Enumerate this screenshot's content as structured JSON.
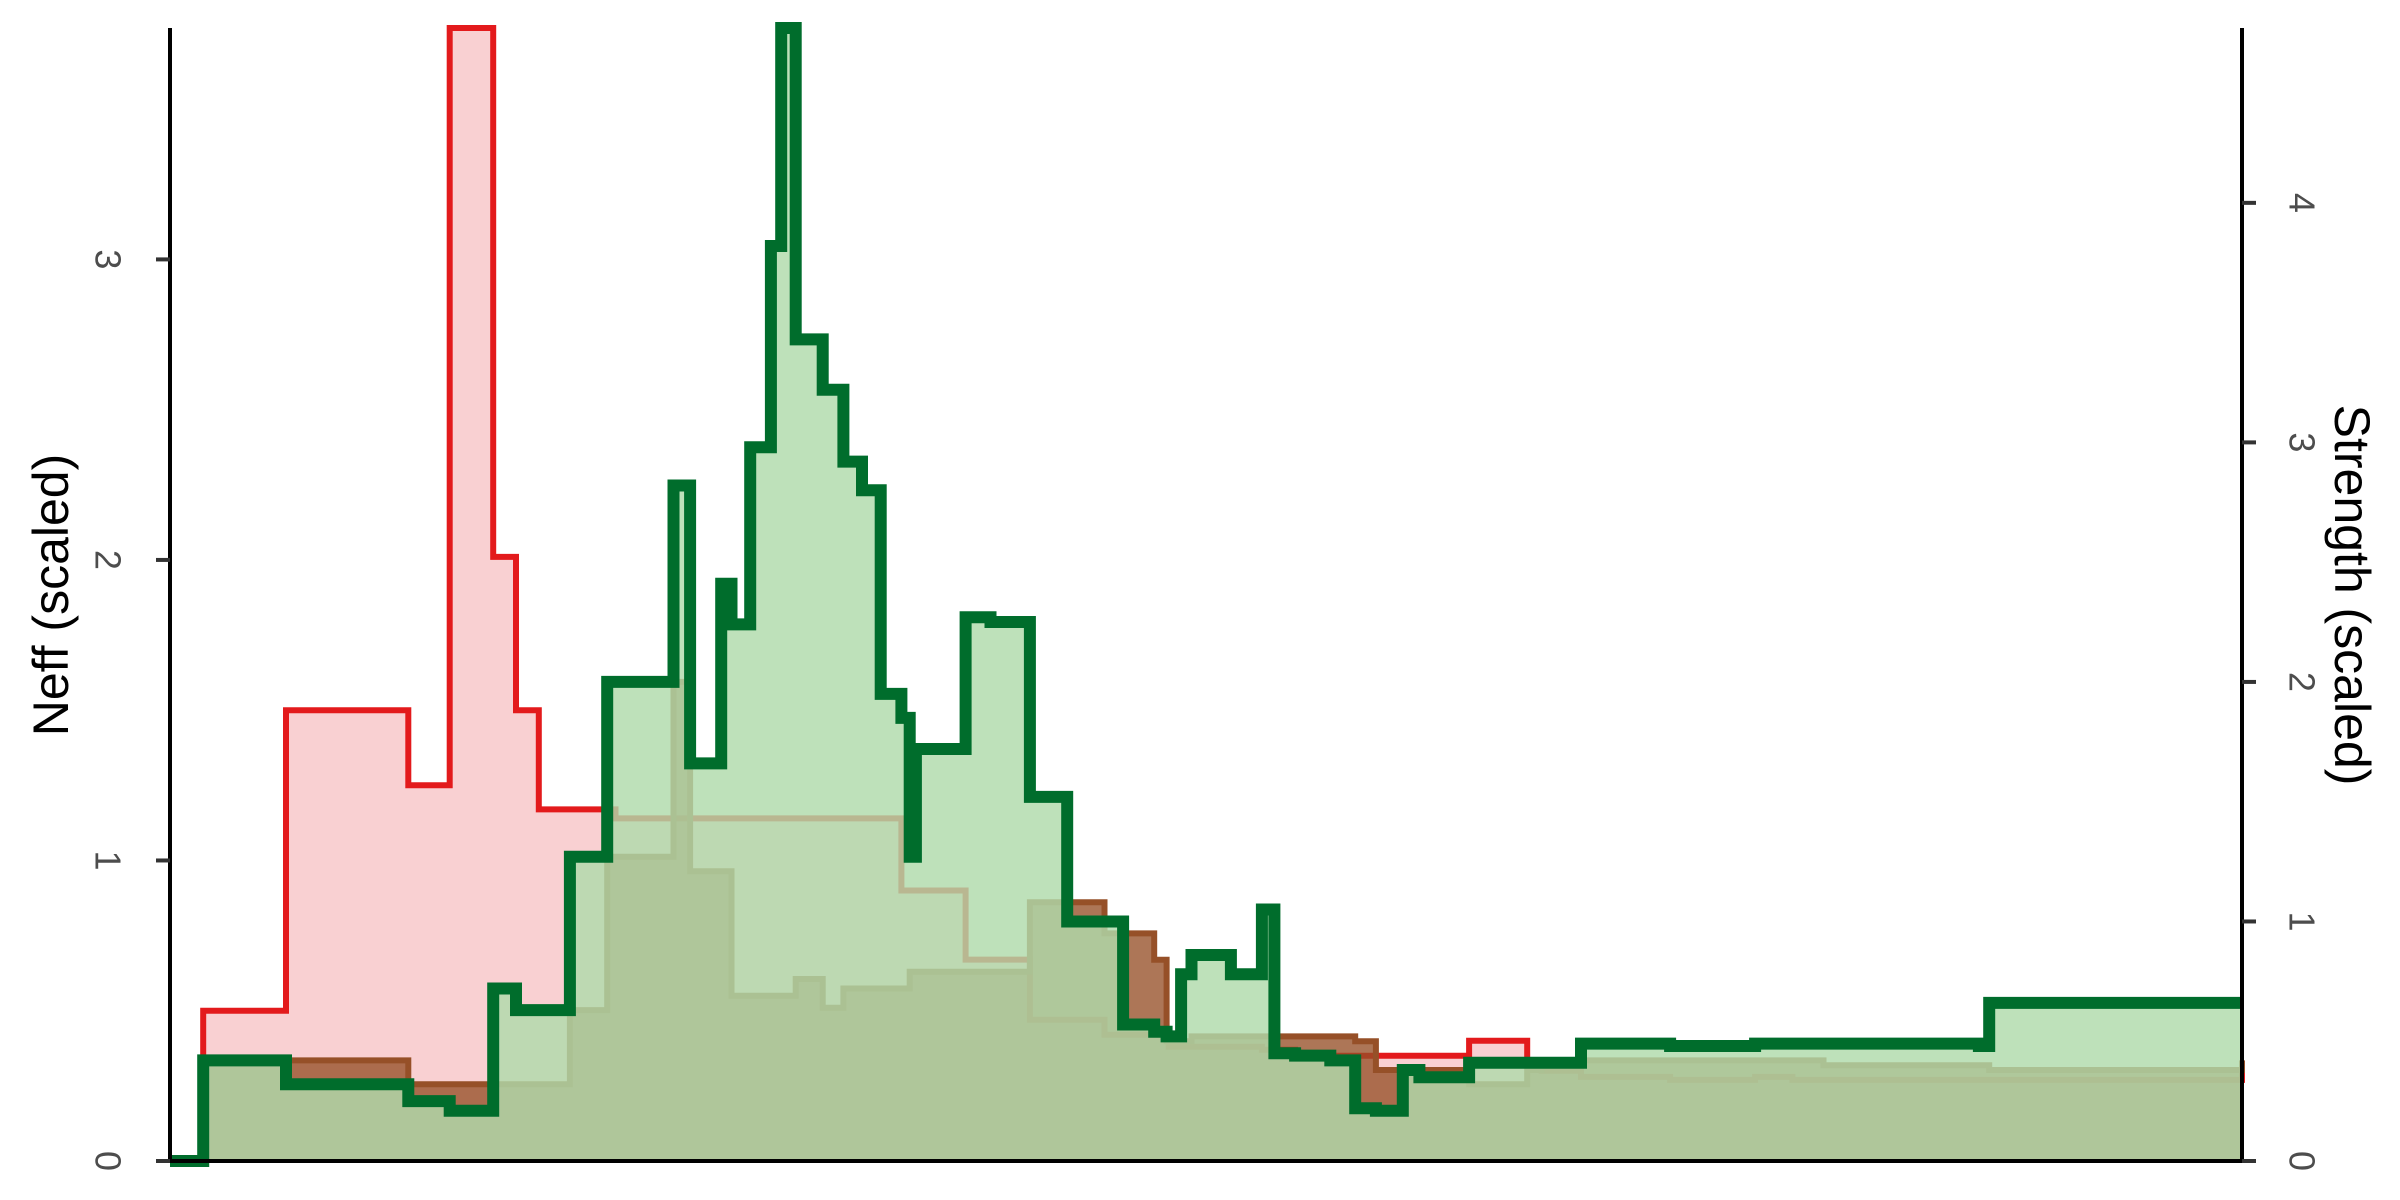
{
  "chart_data": {
    "type": "area",
    "title": "",
    "xlabel": "",
    "ylabel": "Neff (scaled)",
    "y2label": "Strength (scaled)",
    "ylim": [
      0,
      3.77
    ],
    "y2lim": [
      0,
      4.73
    ],
    "yticks": [
      "0",
      "1",
      "2",
      "3"
    ],
    "y2ticks": [
      "0",
      "1",
      "2",
      "3",
      "4"
    ],
    "xlim": [
      0,
      100
    ],
    "grid": false,
    "legend": "none",
    "step": true,
    "series": [
      {
        "color": "#e31a1c",
        "fill": "#f9d0d2",
        "axis": "left",
        "x": [
          0,
          1.6,
          5.6,
          11.5,
          13.5,
          13.7,
          15.6,
          16.7,
          17.8,
          19.3,
          21.5,
          35.3,
          38.4,
          41.5,
          45.1,
          48.2,
          52.7,
          54.3,
          62.7,
          65.5,
          66.2,
          68.1,
          72.4,
          76.5,
          78.3,
          79.8,
          80.5,
          87.3,
          87.8,
          88.7,
          100
        ],
        "y": [
          0,
          0.5,
          1.5,
          1.25,
          3.77,
          3.77,
          2.01,
          1.5,
          1.17,
          1.17,
          1.14,
          0.9,
          0.67,
          0.47,
          0.42,
          0.38,
          0.37,
          0.35,
          0.4,
          0.32,
          0.3,
          0.28,
          0.27,
          0.28,
          0.27,
          0.27,
          0.27,
          0.27,
          0.27,
          0.27,
          0.3
        ]
      },
      {
        "color": "#965028",
        "fill": "#965028",
        "axis": "right",
        "x": [
          0,
          1.6,
          5.6,
          11.5,
          13.7,
          15.6,
          19.3,
          21.1,
          24.3,
          25.1,
          26.6,
          27.1,
          28.0,
          30.2,
          31.5,
          32.5,
          35.7,
          36.0,
          41.5,
          45.1,
          47.5,
          48.1,
          49.3,
          57.2,
          58.2,
          62.7,
          65.5,
          66.2,
          79.8,
          80.5,
          87.3,
          87.8,
          100
        ],
        "y": [
          0,
          0.42,
          0.42,
          0.32,
          0.32,
          0.32,
          0.63,
          1.27,
          2.0,
          1.21,
          1.21,
          0.69,
          0.69,
          0.76,
          0.64,
          0.72,
          0.79,
          0.79,
          1.08,
          0.95,
          0.84,
          0.5,
          0.52,
          0.5,
          0.38,
          0.32,
          0.38,
          0.42,
          0.4,
          0.4,
          0.4,
          0.38,
          0.42
        ]
      },
      {
        "color": "#006d2c",
        "fill": "#b0daab",
        "axis": "right",
        "x": [
          0,
          1.6,
          5.6,
          11.5,
          13.5,
          15.6,
          16.7,
          19.3,
          21.1,
          24.3,
          25.1,
          26.6,
          27.1,
          28.0,
          29.0,
          29.5,
          30.2,
          31.5,
          32.5,
          33.4,
          34.3,
          35.3,
          35.7,
          36.0,
          38.4,
          39.6,
          41.5,
          43.3,
          46.0,
          47.5,
          48.1,
          48.8,
          49.3,
          51.2,
          52.7,
          53.3,
          54.3,
          56.0,
          57.2,
          58.2,
          59.5,
          60.3,
          61.4,
          62.7,
          63.0,
          65.5,
          66.2,
          68.1,
          72.4,
          76.5,
          78.3,
          79.8,
          80.5,
          87.3,
          87.8,
          100
        ],
        "y": [
          0,
          0.42,
          0.32,
          0.25,
          0.21,
          0.72,
          0.63,
          1.27,
          2.0,
          2.82,
          1.66,
          2.41,
          2.24,
          2.98,
          3.82,
          4.73,
          3.43,
          3.22,
          2.92,
          2.8,
          1.95,
          1.85,
          1.27,
          1.72,
          2.27,
          2.25,
          1.52,
          1.0,
          0.57,
          0.54,
          0.52,
          0.78,
          0.86,
          0.78,
          1.05,
          0.45,
          0.44,
          0.42,
          0.22,
          0.21,
          0.38,
          0.35,
          0.35,
          0.41,
          0.41,
          0.41,
          0.41,
          0.49,
          0.48,
          0.49,
          0.49,
          0.49,
          0.49,
          0.48,
          0.66,
          0.66
        ]
      }
    ]
  }
}
